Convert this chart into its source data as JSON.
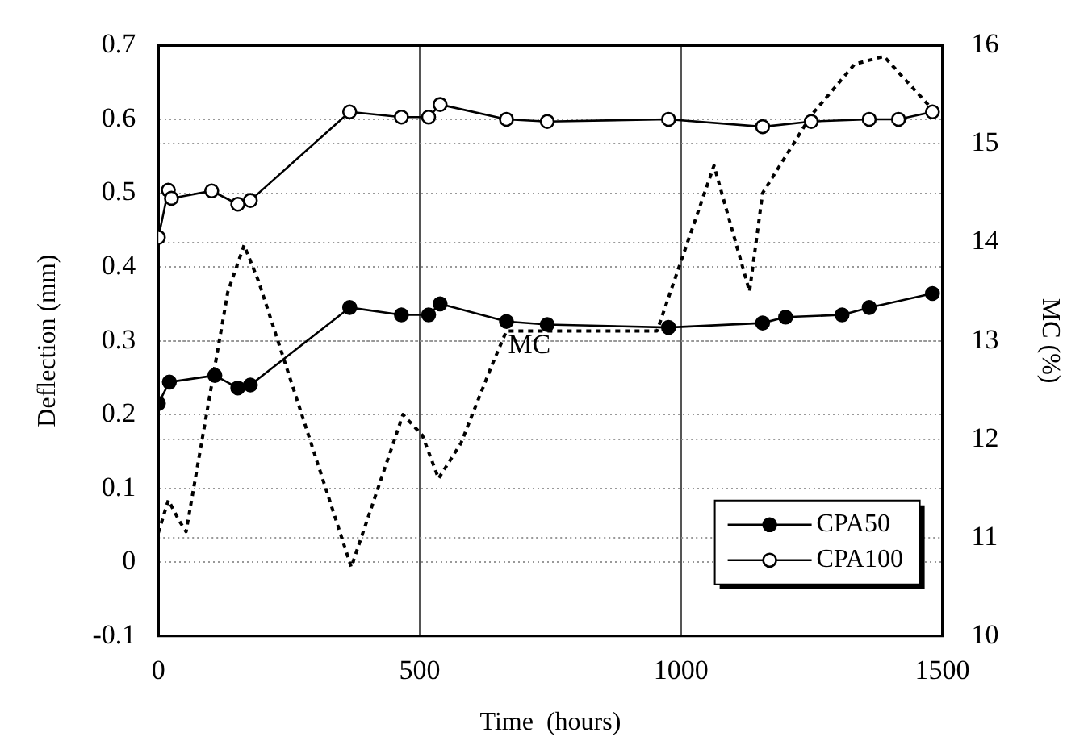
{
  "chart_data": {
    "type": "line",
    "xlabel": "Time  (hours)",
    "ylabel": "Deflection (mm)",
    "y2label": "MC (%)",
    "xlim": [
      0,
      1500
    ],
    "xticks": [
      0,
      500,
      1000,
      1500
    ],
    "ylim": [
      -0.1,
      0.7
    ],
    "yticks": [
      -0.1,
      0,
      0.1,
      0.2,
      0.3,
      0.4,
      0.5,
      0.6,
      0.7
    ],
    "y2lim": [
      10,
      16
    ],
    "y2ticks": [
      10,
      11,
      12,
      13,
      14,
      15,
      16
    ],
    "grid": true,
    "legend": "bottom right",
    "series": [
      {
        "name": "CPA50",
        "color": "#000000",
        "marker": "circle",
        "line_style": "solid",
        "x": [
          0,
          21,
          108,
          152,
          176,
          366,
          465,
          517,
          539,
          666,
          744,
          976,
          1156,
          1200,
          1308,
          1360,
          1481
        ],
        "values": [
          0.215,
          0.244,
          0.253,
          0.236,
          0.24,
          0.345,
          0.335,
          0.335,
          0.35,
          0.326,
          0.322,
          0.318,
          0.324,
          0.332,
          0.335,
          0.345,
          0.364
        ]
      },
      {
        "name": "CPA100",
        "color": "#000000",
        "marker": "circle",
        "line_style": "solid",
        "x": [
          0,
          19,
          25,
          102,
          152,
          176,
          366,
          465,
          517,
          539,
          666,
          744,
          976,
          1156,
          1249,
          1360,
          1416,
          1481
        ],
        "values": [
          0.44,
          0.504,
          0.493,
          0.503,
          0.485,
          0.49,
          0.61,
          0.603,
          0.603,
          0.62,
          0.6,
          0.597,
          0.6,
          0.59,
          0.597,
          0.6,
          0.6,
          0.61
        ]
      },
      {
        "name": "MC",
        "color": "#000000",
        "marker": "none",
        "line_style": "dotted",
        "axis": "y2",
        "x": [
          0,
          19,
          40,
          53,
          133,
          164,
          192,
          369,
          468,
          505,
          536,
          579,
          638,
          666,
          954,
          1063,
          1131,
          1156,
          1249,
          1332,
          1388,
          1481
        ],
        "values": [
          11.05,
          11.38,
          11.17,
          11.06,
          13.5,
          13.97,
          13.6,
          10.7,
          12.25,
          12.04,
          11.6,
          11.96,
          12.75,
          13.1,
          13.1,
          14.78,
          13.5,
          14.5,
          15.29,
          15.81,
          15.89,
          15.35
        ]
      }
    ]
  }
}
